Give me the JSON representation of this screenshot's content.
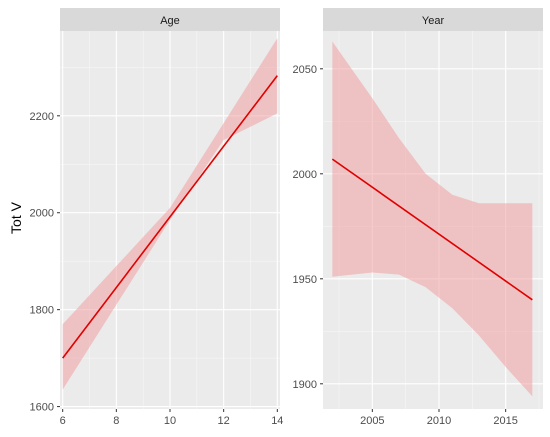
{
  "figure": {
    "ylabel": "Tot V"
  },
  "colors": {
    "panel_background": "#ebebeb",
    "strip_background": "#d9d9d9",
    "grid_major": "#ffffff",
    "line": "#e00000",
    "ribbon": "#f0a0a3",
    "tick_label": "#4d4d4d"
  },
  "chart_data": [
    {
      "type": "line",
      "panel": "Age",
      "title": "Age",
      "xlabel": "",
      "ylabel": "Tot V",
      "xlim": [
        5.9,
        14.1
      ],
      "ylim": [
        1595,
        2375
      ],
      "x_ticks": [
        6,
        8,
        10,
        12,
        14
      ],
      "y_ticks": [
        1600,
        1800,
        2000,
        2200
      ],
      "grid": true,
      "series": [
        {
          "x": [
            6,
            14
          ],
          "y": [
            1700,
            2283
          ],
          "ribbon_x": [
            6,
            8,
            10,
            12,
            14
          ],
          "ribbon_lower": [
            1635,
            1810,
            1985,
            2150,
            2205
          ],
          "ribbon_upper": [
            1770,
            1890,
            2010,
            2185,
            2360
          ]
        }
      ]
    },
    {
      "type": "line",
      "panel": "Year",
      "title": "Year",
      "xlabel": "",
      "ylabel": "",
      "xlim": [
        2001.3,
        2017.8
      ],
      "ylim": [
        1888,
        2068
      ],
      "x_ticks": [
        2005,
        2010,
        2015
      ],
      "y_ticks": [
        1900,
        1950,
        2000,
        2050
      ],
      "grid": true,
      "series": [
        {
          "x": [
            2002,
            2017
          ],
          "y": [
            2007,
            1940
          ],
          "ribbon_x": [
            2002,
            2005,
            2007,
            2009,
            2011,
            2013,
            2015,
            2017
          ],
          "ribbon_lower": [
            1951,
            1953,
            1952,
            1946,
            1936,
            1923,
            1908,
            1894
          ],
          "ribbon_upper": [
            2063,
            2036,
            2017,
            2000,
            1990,
            1986,
            1986,
            1986
          ]
        }
      ]
    }
  ]
}
